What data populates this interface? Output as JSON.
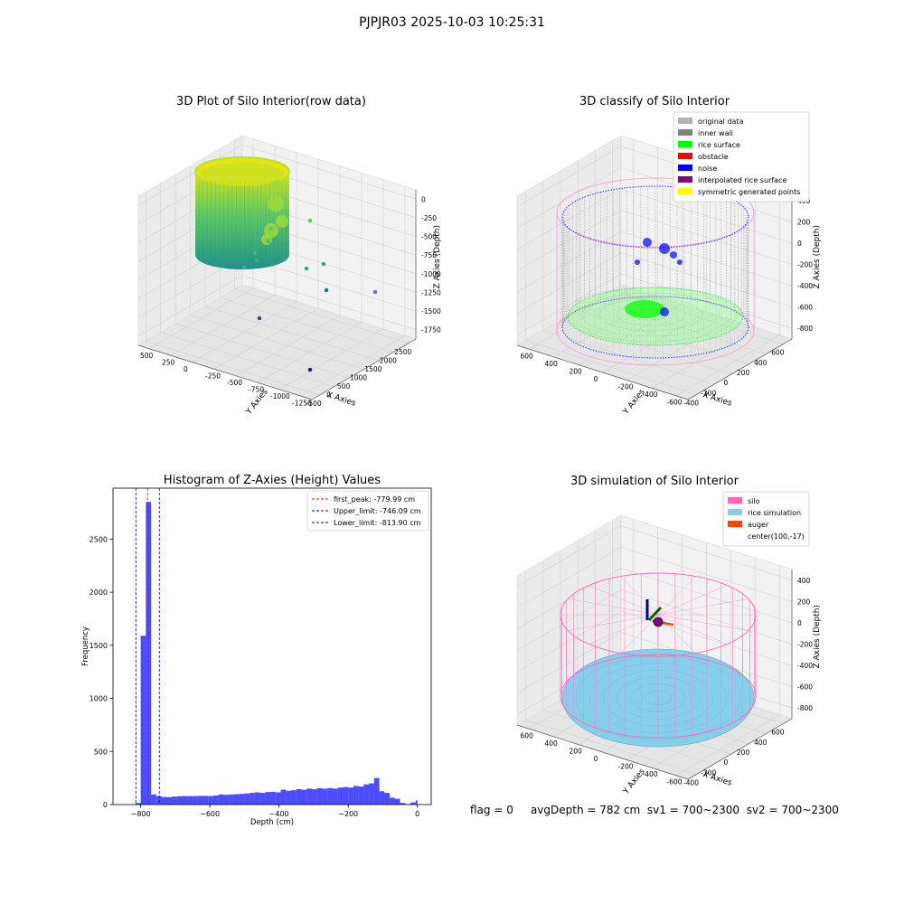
{
  "suptitle": "PJPJR03 2025-10-03 10:25:31",
  "status_line": {
    "flag": "flag = 0",
    "avg_depth": "avgDepth = 782 cm",
    "sv1": "sv1 = 700~2300",
    "sv2": "sv2 = 700~2300"
  },
  "panels": [
    {
      "title": "3D Plot of Silo Interior(row data)",
      "xlabel": "X Axies",
      "ylabel": "Y Axies",
      "zlabel": "Z Axies (Depth)",
      "xticks": [
        "-500",
        "0",
        "500",
        "1000",
        "1500",
        "2000",
        "2500"
      ],
      "yticks": [
        "500",
        "250",
        "0",
        "-250",
        "-500",
        "-750",
        "-1000",
        "-1250"
      ],
      "zticks": [
        "0",
        "-250",
        "-500",
        "-750",
        "-1000",
        "-1250",
        "-1500",
        "-1750"
      ]
    },
    {
      "title": "3D classify of Silo Interior",
      "xlabel": "X Axies",
      "ylabel": "Y Axies",
      "zlabel": "Z Axies (Depth)",
      "xticks": [
        "-400",
        "-200",
        "0",
        "200",
        "400",
        "600"
      ],
      "yticks": [
        "600",
        "400",
        "200",
        "0",
        "-200",
        "-400",
        "-600"
      ],
      "zticks": [
        "400",
        "200",
        "0",
        "-200",
        "-400",
        "-600",
        "-800"
      ],
      "legend": [
        {
          "label": "original data",
          "color": "#b3b3b3"
        },
        {
          "label": "inner wall",
          "color": "#808080"
        },
        {
          "label": "rice surface",
          "color": "#00ff00"
        },
        {
          "label": "obstacle",
          "color": "#ff0000"
        },
        {
          "label": "noise",
          "color": "#0000ff"
        },
        {
          "label": "interpolated rice surface",
          "color": "#800080"
        },
        {
          "label": "symmetric generated points",
          "color": "#ffff00"
        }
      ]
    },
    {
      "title": "3D simulation of Silo Interior",
      "xlabel": "X Axies",
      "ylabel": "Y Axies",
      "zlabel": "Z Axies (Depth)",
      "xticks": [
        "-400",
        "-200",
        "0",
        "200",
        "400",
        "600"
      ],
      "yticks": [
        "600",
        "400",
        "200",
        "0",
        "-200",
        "-400",
        "-600"
      ],
      "zticks": [
        "400",
        "200",
        "0",
        "-200",
        "-400",
        "-600",
        "-800"
      ],
      "legend": [
        {
          "label": "silo",
          "color": "#ff69b4"
        },
        {
          "label": "rice simulation",
          "color": "#87ceeb"
        },
        {
          "label": "auger",
          "color": "#ff4500"
        },
        {
          "label": "center(100,-17)",
          "color": ""
        }
      ]
    }
  ],
  "chart_data": {
    "type": "bar",
    "title": "Histogram of Z-Axies (Height) Values",
    "xlabel": "Depth (cm)",
    "ylabel": "Frequency",
    "xlim": [
      -880,
      40
    ],
    "ylim": [
      0,
      2980
    ],
    "xticks": [
      -800,
      -600,
      -400,
      -200,
      0
    ],
    "yticks": [
      0,
      500,
      1000,
      1500,
      2000,
      2500
    ],
    "bar_color": "#0000ff",
    "bins": [
      {
        "x0": -815,
        "x1": -800,
        "count": 15
      },
      {
        "x0": -800,
        "x1": -785,
        "count": 1590
      },
      {
        "x0": -785,
        "x1": -770,
        "count": 2850
      },
      {
        "x0": -770,
        "x1": -755,
        "count": 95
      },
      {
        "x0": -755,
        "x1": -740,
        "count": 80
      },
      {
        "x0": -740,
        "x1": -725,
        "count": 72
      },
      {
        "x0": -725,
        "x1": -710,
        "count": 70
      },
      {
        "x0": -710,
        "x1": -695,
        "count": 75
      },
      {
        "x0": -695,
        "x1": -680,
        "count": 78
      },
      {
        "x0": -680,
        "x1": -665,
        "count": 80
      },
      {
        "x0": -665,
        "x1": -650,
        "count": 80
      },
      {
        "x0": -650,
        "x1": -635,
        "count": 80
      },
      {
        "x0": -635,
        "x1": -620,
        "count": 82
      },
      {
        "x0": -620,
        "x1": -605,
        "count": 82
      },
      {
        "x0": -605,
        "x1": -590,
        "count": 80
      },
      {
        "x0": -590,
        "x1": -575,
        "count": 85
      },
      {
        "x0": -575,
        "x1": -560,
        "count": 95
      },
      {
        "x0": -560,
        "x1": -545,
        "count": 92
      },
      {
        "x0": -545,
        "x1": -530,
        "count": 95
      },
      {
        "x0": -530,
        "x1": -515,
        "count": 98
      },
      {
        "x0": -515,
        "x1": -500,
        "count": 100
      },
      {
        "x0": -500,
        "x1": -485,
        "count": 105
      },
      {
        "x0": -485,
        "x1": -470,
        "count": 110
      },
      {
        "x0": -470,
        "x1": -455,
        "count": 115
      },
      {
        "x0": -455,
        "x1": -440,
        "count": 110
      },
      {
        "x0": -440,
        "x1": -425,
        "count": 118
      },
      {
        "x0": -425,
        "x1": -410,
        "count": 120
      },
      {
        "x0": -410,
        "x1": -395,
        "count": 115
      },
      {
        "x0": -395,
        "x1": -380,
        "count": 140
      },
      {
        "x0": -380,
        "x1": -365,
        "count": 130
      },
      {
        "x0": -365,
        "x1": -350,
        "count": 135
      },
      {
        "x0": -350,
        "x1": -335,
        "count": 145
      },
      {
        "x0": -335,
        "x1": -320,
        "count": 140
      },
      {
        "x0": -320,
        "x1": -305,
        "count": 150
      },
      {
        "x0": -305,
        "x1": -290,
        "count": 145
      },
      {
        "x0": -290,
        "x1": -275,
        "count": 155
      },
      {
        "x0": -275,
        "x1": -260,
        "count": 150
      },
      {
        "x0": -260,
        "x1": -245,
        "count": 155
      },
      {
        "x0": -245,
        "x1": -230,
        "count": 150
      },
      {
        "x0": -230,
        "x1": -215,
        "count": 160
      },
      {
        "x0": -215,
        "x1": -200,
        "count": 165
      },
      {
        "x0": -200,
        "x1": -185,
        "count": 160
      },
      {
        "x0": -185,
        "x1": -170,
        "count": 175
      },
      {
        "x0": -170,
        "x1": -155,
        "count": 170
      },
      {
        "x0": -155,
        "x1": -140,
        "count": 190
      },
      {
        "x0": -140,
        "x1": -125,
        "count": 200
      },
      {
        "x0": -125,
        "x1": -110,
        "count": 250
      },
      {
        "x0": -110,
        "x1": -95,
        "count": 125
      },
      {
        "x0": -95,
        "x1": -80,
        "count": 110
      },
      {
        "x0": -80,
        "x1": -65,
        "count": 65
      },
      {
        "x0": -65,
        "x1": -50,
        "count": 55
      },
      {
        "x0": -50,
        "x1": -35,
        "count": 15
      },
      {
        "x0": -35,
        "x1": -20,
        "count": 5
      },
      {
        "x0": -20,
        "x1": -5,
        "count": 20
      },
      {
        "x0": -5,
        "x1": 0,
        "count": 40
      }
    ],
    "lines": [
      {
        "label": "first_peak: -779.99 cm",
        "x": -779.99,
        "color": "#ff0000"
      },
      {
        "label": "Upper_limit: -746.09 cm",
        "x": -746.09,
        "color": "#0000aa"
      },
      {
        "label": "Lower_limit: -813.90 cm",
        "x": -813.9,
        "color": "#0000aa"
      }
    ]
  }
}
